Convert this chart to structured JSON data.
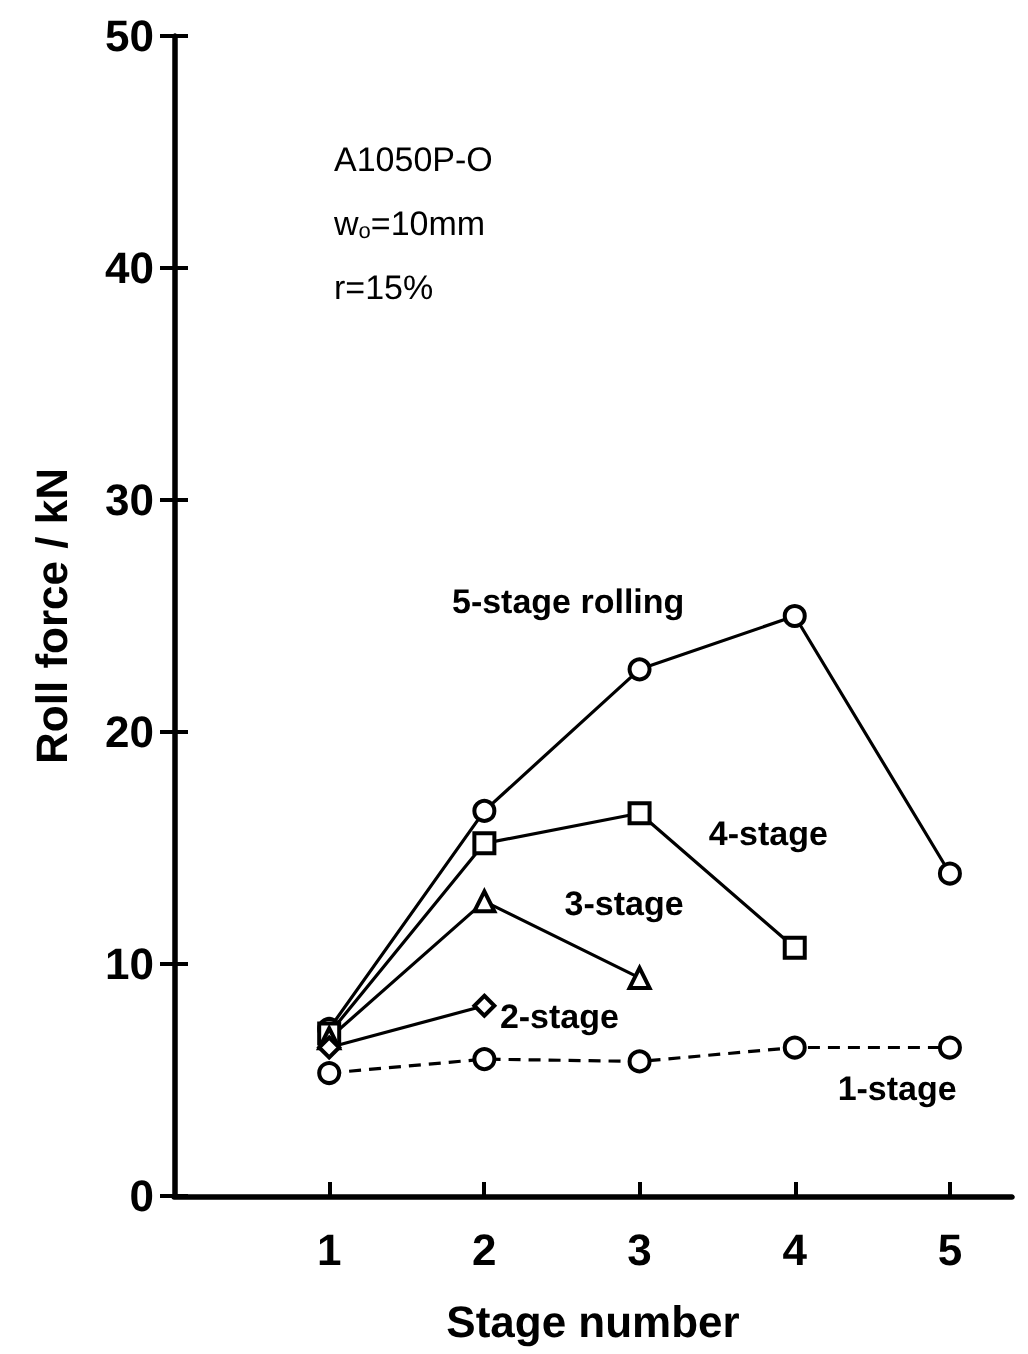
{
  "chart_data": {
    "type": "line",
    "xlabel": "Stage number",
    "ylabel": "Roll force / kN",
    "annotations": [
      "A1050P-O",
      "w$_{o}$=10mm",
      "r=15%"
    ],
    "xlim": [
      0,
      5.4
    ],
    "xticks": [
      1,
      2,
      3,
      4,
      5
    ],
    "ylim": [
      0,
      50
    ],
    "yticks": [
      0,
      10,
      20,
      30,
      40,
      50
    ],
    "grid": false,
    "legend": false,
    "series": [
      {
        "name": "5-stage rolling",
        "color": "#000000",
        "marker": "circle",
        "line_style": "solid",
        "x": [
          1,
          2,
          3,
          4,
          5
        ],
        "values": [
          7.2,
          16.6,
          22.7,
          25.0,
          13.9
        ]
      },
      {
        "name": "4-stage",
        "color": "#000000",
        "marker": "square",
        "line_style": "solid",
        "x": [
          1,
          2,
          3,
          4
        ],
        "values": [
          7.0,
          15.2,
          16.5,
          10.7
        ]
      },
      {
        "name": "3-stage",
        "color": "#000000",
        "marker": "triangle",
        "line_style": "solid",
        "x": [
          1,
          2,
          3
        ],
        "values": [
          6.8,
          12.7,
          9.4
        ]
      },
      {
        "name": "2-stage",
        "color": "#000000",
        "marker": "diamond",
        "line_style": "solid",
        "x": [
          1,
          2
        ],
        "values": [
          6.4,
          8.2
        ]
      },
      {
        "name": "1-stage",
        "color": "#000000",
        "marker": "circle",
        "line_style": "dashed",
        "x": [
          1,
          2,
          3,
          4,
          5
        ],
        "values": [
          5.3,
          5.9,
          5.8,
          6.4,
          6.4
        ]
      }
    ]
  }
}
